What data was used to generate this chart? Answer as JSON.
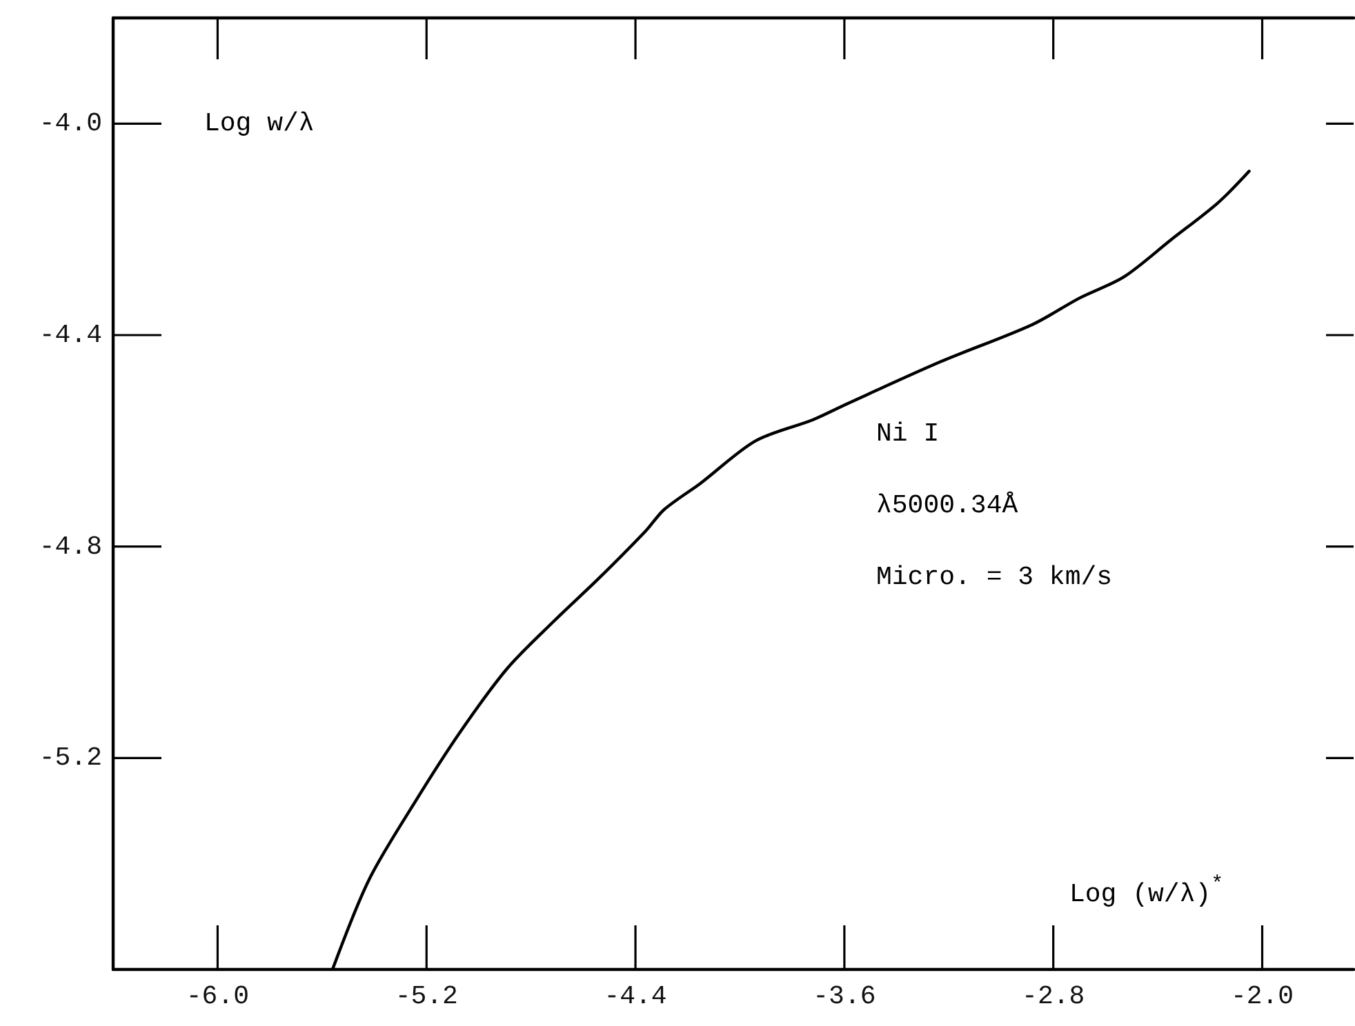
{
  "chart_data": {
    "type": "line",
    "xlabel": "Log (w/λ)$^{*}$",
    "ylabel": "Log w/λ",
    "annotations": [
      "Ni I",
      "λ5000.34Å",
      "Micro. = 3 km/s"
    ],
    "x": [
      -5.56,
      -5.42,
      -5.24,
      -5.07,
      -4.89,
      -4.71,
      -4.54,
      -4.36,
      -4.29,
      -4.15,
      -3.94,
      -3.72,
      -3.59,
      -3.23,
      -2.88,
      -2.7,
      -2.53,
      -2.35,
      -2.17,
      -2.05
    ],
    "series": [
      {
        "color": "#000000",
        "values": [
          -5.6,
          -5.43,
          -5.28,
          -5.15,
          -5.03,
          -4.94,
          -4.86,
          -4.77,
          -4.73,
          -4.68,
          -4.6,
          -4.56,
          -4.53,
          -4.45,
          -4.38,
          -4.33,
          -4.29,
          -4.22,
          -4.15,
          -4.09
        ]
      }
    ],
    "xlim": [
      -6.4,
      -1.65
    ],
    "ylim": [
      -5.6,
      -3.8
    ],
    "xticks": [
      {
        "value": -6,
        "label": "-6.0"
      },
      {
        "value": -5.2,
        "label": "-5.2"
      },
      {
        "value": -4.4,
        "label": "-4.4"
      },
      {
        "value": -3.6,
        "label": "-3.6"
      },
      {
        "value": -2.8,
        "label": "-2.8"
      },
      {
        "value": -2,
        "label": "-2.0"
      }
    ],
    "yticks": [
      {
        "value": -4,
        "label": "-4.0"
      },
      {
        "value": -4.4,
        "label": "-4.4"
      },
      {
        "value": -4.8,
        "label": "-4.8"
      },
      {
        "value": -5.2,
        "label": "-5.2"
      }
    ],
    "grid": false,
    "marker": "none",
    "line_style": "solid"
  }
}
